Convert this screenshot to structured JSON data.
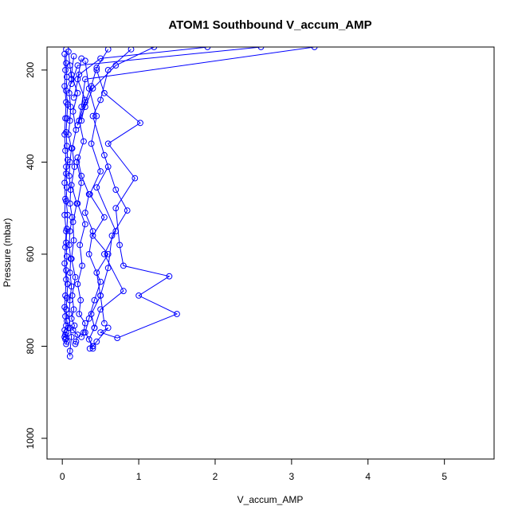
{
  "chart_data": {
    "type": "line",
    "title": "ATOM1 Southbound V_accum_AMP",
    "xlabel": "V_accum_AMP",
    "ylabel": "Pressure (mbar)",
    "xlim": [
      -0.2,
      5.65
    ],
    "ylim": [
      1045,
      150
    ],
    "y_inverted": true,
    "x_ticks": [
      0,
      1,
      2,
      3,
      4,
      5
    ],
    "y_ticks": [
      200,
      400,
      600,
      800,
      1000
    ],
    "x_tick_labels": [
      "0",
      "1",
      "2",
      "3",
      "4",
      "5"
    ],
    "y_tick_labels": [
      "200",
      "400",
      "600",
      "800",
      "1000"
    ],
    "grid": false,
    "legend": "none",
    "series_color": "#0000ff",
    "marker": "open-circle",
    "series": [
      {
        "x": [
          0.05,
          0.05,
          0.06,
          0.05,
          0.07,
          0.06,
          0.05,
          0.06,
          0.07,
          0.05,
          0.06,
          0.05,
          0.07,
          0.06,
          0.05,
          0.06,
          0.05,
          0.07,
          0.06,
          0.05,
          0.06,
          0.08,
          0.05,
          0.05,
          0.04,
          0.06,
          0.05
        ],
        "y": [
          155,
          185,
          215,
          245,
          275,
          305,
          335,
          365,
          395,
          425,
          455,
          485,
          515,
          545,
          575,
          605,
          635,
          665,
          695,
          720,
          745,
          760,
          770,
          782,
          785,
          790,
          795
        ]
      },
      {
        "x": [
          0.08,
          0.1,
          0.12,
          0.09,
          0.11,
          0.1,
          0.08,
          0.12,
          0.1,
          0.09,
          0.11,
          0.1,
          0.13,
          0.1,
          0.09,
          0.11,
          0.1,
          0.12,
          0.1,
          0.09,
          0.1,
          0.12,
          0.1,
          0.1
        ],
        "y": [
          160,
          190,
          220,
          250,
          280,
          310,
          340,
          370,
          400,
          430,
          460,
          490,
          520,
          550,
          580,
          610,
          640,
          670,
          700,
          730,
          760,
          780,
          810,
          822
        ]
      },
      {
        "x": [
          0.03,
          0.04,
          0.03,
          0.05,
          0.04,
          0.03,
          0.04,
          0.05,
          0.03,
          0.04,
          0.03,
          0.05,
          0.04,
          0.03,
          0.05,
          0.04,
          0.03,
          0.04,
          0.05,
          0.03,
          0.04,
          0.03
        ],
        "y": [
          165,
          200,
          235,
          270,
          305,
          340,
          375,
          410,
          445,
          480,
          515,
          550,
          585,
          620,
          655,
          690,
          715,
          735,
          755,
          765,
          775,
          780
        ]
      },
      {
        "x": [
          0.15,
          0.12,
          0.2,
          0.14,
          0.18,
          0.13,
          0.16,
          0.12,
          0.19,
          0.14,
          0.15,
          0.12,
          0.17,
          0.13,
          0.15,
          0.12,
          0.16,
          0.14,
          0.2,
          0.18,
          0.17
        ],
        "y": [
          170,
          210,
          250,
          290,
          330,
          370,
          410,
          450,
          490,
          530,
          570,
          610,
          650,
          690,
          720,
          740,
          755,
          765,
          775,
          790,
          795
        ]
      },
      {
        "x": [
          0.25,
          0.2,
          0.3,
          0.22,
          0.28,
          0.19,
          0.25,
          0.2,
          0.3,
          0.23,
          0.26,
          0.2,
          0.24,
          0.22,
          0.3,
          0.28,
          0.25
        ],
        "y": [
          175,
          220,
          265,
          310,
          355,
          400,
          445,
          490,
          535,
          580,
          625,
          665,
          700,
          730,
          750,
          770,
          780
        ]
      },
      {
        "x": [
          0.3,
          0.35,
          0.45,
          0.38,
          0.5,
          0.36,
          0.55,
          0.4,
          0.6,
          0.45,
          0.5,
          0.38,
          0.42,
          0.35,
          0.4
        ],
        "y": [
          180,
          240,
          300,
          360,
          420,
          470,
          520,
          560,
          600,
          640,
          690,
          730,
          760,
          785,
          805
        ]
      },
      {
        "x": [
          0.45,
          0.55,
          1.02,
          0.6,
          0.95,
          0.7,
          0.75,
          0.8,
          1.4,
          1.0,
          1.5,
          0.72,
          0.5,
          0.6,
          0.45,
          0.4,
          0.36
        ],
        "y": [
          200,
          250,
          315,
          360,
          435,
          500,
          580,
          625,
          648,
          690,
          730,
          782,
          770,
          760,
          790,
          800,
          805
        ]
      },
      {
        "x": [
          0.9,
          0.6,
          0.5,
          0.4,
          0.55,
          0.7,
          0.85,
          0.65,
          0.6,
          0.5,
          0.55
        ],
        "y": [
          155,
          200,
          265,
          300,
          385,
          460,
          505,
          560,
          630,
          690,
          750
        ]
      },
      {
        "x": [
          3.3,
          0.3,
          0.25,
          0.2
        ],
        "y": [
          150,
          220,
          280,
          320
        ]
      },
      {
        "x": [
          2.6,
          0.2,
          0.12
        ],
        "y": [
          150,
          190,
          230
        ]
      },
      {
        "x": [
          1.9,
          0.5,
          0.22,
          0.15
        ],
        "y": [
          150,
          175,
          210,
          260
        ]
      },
      {
        "x": [
          1.2,
          0.7,
          0.4,
          0.3,
          0.2
        ],
        "y": [
          150,
          190,
          240,
          280,
          320
        ]
      },
      {
        "x": [
          0.6,
          0.45,
          0.38,
          0.3,
          0.25
        ],
        "y": [
          155,
          195,
          235,
          270,
          310
        ]
      },
      {
        "x": [
          0.2,
          0.25,
          0.35,
          0.3,
          0.4,
          0.35,
          0.5,
          0.42,
          0.35,
          0.3,
          0.4
        ],
        "y": [
          390,
          430,
          470,
          510,
          550,
          600,
          660,
          700,
          740,
          770,
          800
        ]
      },
      {
        "x": [
          0.6,
          0.45,
          0.7,
          0.55,
          0.8,
          0.5,
          0.42
        ],
        "y": [
          410,
          455,
          550,
          600,
          680,
          720,
          760
        ]
      }
    ]
  }
}
